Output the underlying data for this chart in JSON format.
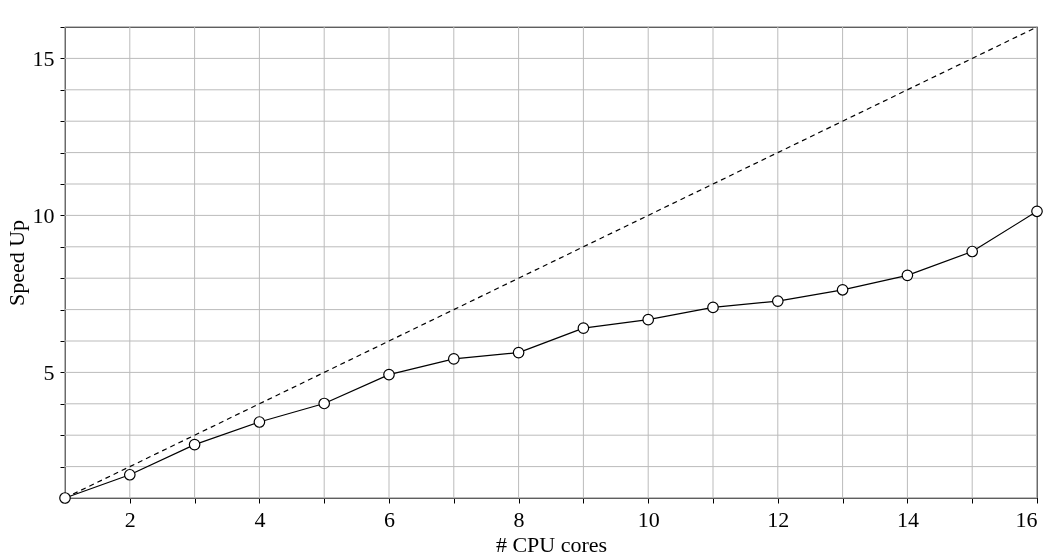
{
  "chart_data": {
    "type": "line",
    "xlabel": "# CPU cores",
    "ylabel": "Speed Up",
    "xlim": [
      1,
      16
    ],
    "ylim": [
      1,
      16
    ],
    "xticks": [
      {
        "value": 1,
        "label": null
      },
      2,
      {
        "value": 3,
        "label": null
      },
      4,
      {
        "value": 5,
        "label": null
      },
      6,
      {
        "value": 7,
        "label": null
      },
      8,
      {
        "value": 9,
        "label": null
      },
      10,
      {
        "value": 11,
        "label": null
      },
      12,
      {
        "value": 13,
        "label": null
      },
      14,
      {
        "value": 15,
        "label": null
      },
      16
    ],
    "yticks": [
      {
        "value": 1,
        "label": null
      },
      {
        "value": 2,
        "label": null
      },
      {
        "value": 3,
        "label": null
      },
      {
        "value": 4,
        "label": null
      },
      5,
      {
        "value": 6,
        "label": null
      },
      {
        "value": 7,
        "label": null
      },
      {
        "value": 8,
        "label": null
      },
      {
        "value": 9,
        "label": null
      },
      10,
      {
        "value": 11,
        "label": null
      },
      {
        "value": 12,
        "label": null
      },
      {
        "value": 13,
        "label": null
      },
      {
        "value": 14,
        "label": null
      },
      15,
      {
        "value": 16,
        "label": null
      }
    ],
    "grid": true,
    "legend": false,
    "series": [
      {
        "color": "#000000",
        "line_style": "dashed",
        "x": [
          1,
          16
        ],
        "values": [
          1,
          16
        ]
      },
      {
        "color": "#000000",
        "marker": "circle",
        "line_style": "solid",
        "x": [
          1,
          2,
          3,
          4,
          5,
          6,
          7,
          8,
          9,
          10,
          11,
          12,
          13,
          14,
          15,
          16
        ],
        "values": [
          1,
          1.74,
          2.7,
          3.42,
          4.01,
          4.93,
          5.43,
          5.63,
          6.41,
          6.68,
          7.07,
          7.27,
          7.63,
          8.09,
          8.85,
          10.13
        ]
      }
    ]
  }
}
